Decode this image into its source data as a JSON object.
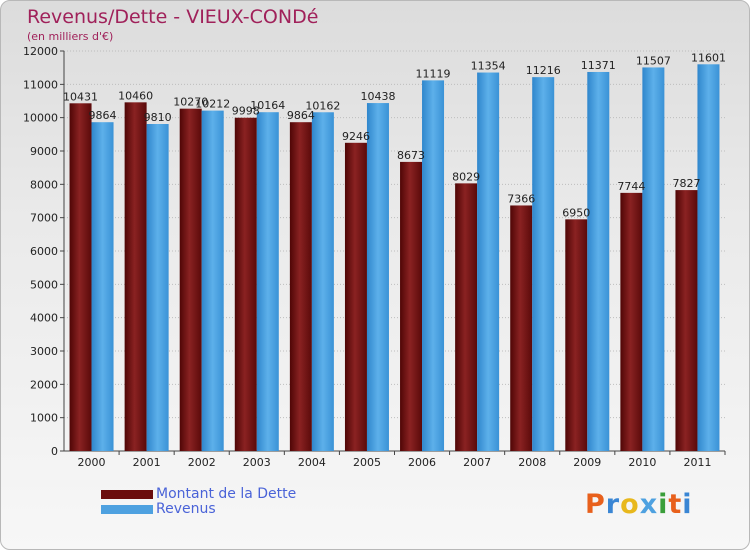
{
  "header": {
    "title": "Revenus/Dette - VIEUX-CONDé",
    "subtitle": "(en milliers d'€)"
  },
  "colors": {
    "dette": "#6b0d0d",
    "revenus": "#4ea1e0",
    "title": "#a0215a",
    "legend_text": "#4a63d8"
  },
  "chart_data": {
    "type": "bar",
    "title": "Revenus/Dette - VIEUX-CONDé",
    "subtitle": "(en milliers d'€)",
    "xlabel": "",
    "ylabel": "",
    "ylim": [
      0,
      12000
    ],
    "yticks": [
      0,
      1000,
      2000,
      3000,
      4000,
      5000,
      6000,
      7000,
      8000,
      9000,
      10000,
      11000,
      12000
    ],
    "grid": true,
    "legend_position": "bottom-left",
    "categories": [
      "2000",
      "2001",
      "2002",
      "2003",
      "2004",
      "2005",
      "2006",
      "2007",
      "2008",
      "2009",
      "2010",
      "2011"
    ],
    "series": [
      {
        "name": "Montant de la Dette",
        "color": "#6b0d0d",
        "values": [
          10431,
          10460,
          10270,
          9998,
          9864,
          9246,
          8673,
          8029,
          7366,
          6950,
          7744,
          7827
        ]
      },
      {
        "name": "Revenus",
        "color": "#4ea1e0",
        "values": [
          9864,
          9810,
          10212,
          10164,
          10162,
          10438,
          11119,
          11354,
          11216,
          11371,
          11507,
          11601
        ]
      }
    ]
  },
  "logo": {
    "text": "Proxiti",
    "letter_colors": [
      "#e8601c",
      "#3a86d4",
      "#e8b81c",
      "#4ea1e0",
      "#3a9e3a",
      "#e8601c",
      "#3a86d4"
    ]
  }
}
